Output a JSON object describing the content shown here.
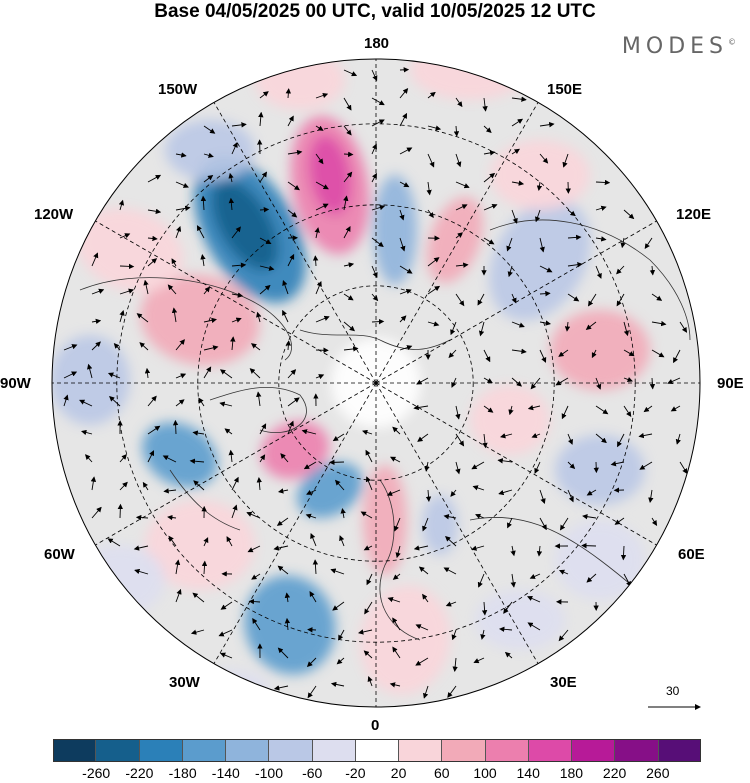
{
  "title": "Base 04/05/2025 00 UTC, valid 10/05/2025 12 UTC",
  "brand": "MODES",
  "brand_mark": "©",
  "longitude_labels": {
    "top": "180",
    "bottom": "0",
    "left": "90W",
    "right": "90E",
    "upper_left_1": "150W",
    "upper_left_2": "120W",
    "upper_right_1": "150E",
    "upper_right_2": "120E",
    "lower_left_1": "60W",
    "lower_left_2": "30W",
    "lower_right_1": "60E",
    "lower_right_2": "30E"
  },
  "reference_vector_label": "30",
  "colorbar": {
    "ticks": [
      "-260",
      "-220",
      "-180",
      "-140",
      "-100",
      "-60",
      "-20",
      "20",
      "60",
      "100",
      "140",
      "180",
      "220",
      "260"
    ],
    "colors": [
      "#0d3b5e",
      "#155f8c",
      "#2b80b8",
      "#5b9ccd",
      "#8fb4dc",
      "#bac8e6",
      "#dddeef",
      "#ffffff",
      "#f9d5da",
      "#f2aab8",
      "#ec7fae",
      "#dd4aa8",
      "#b71a98",
      "#860f87",
      "#570e77"
    ]
  },
  "colors": {
    "neutral_shading": "#e6e6e6",
    "map_outline": "#000000"
  }
}
